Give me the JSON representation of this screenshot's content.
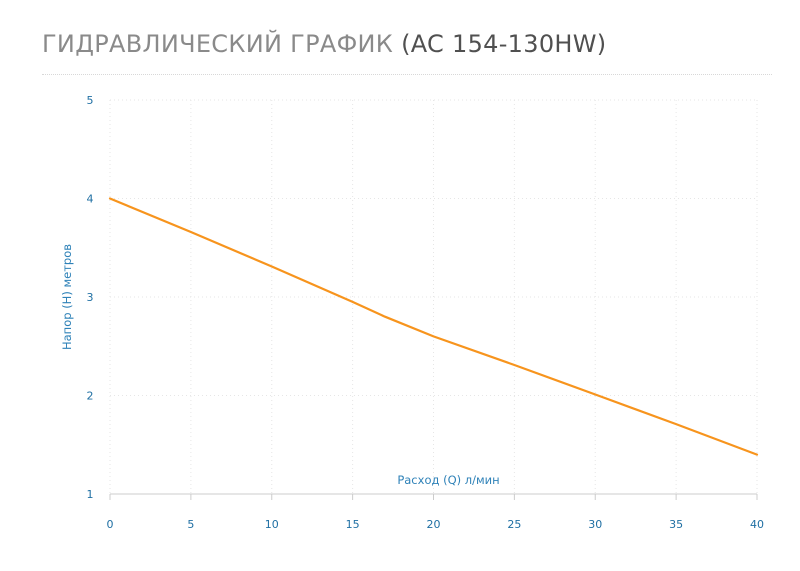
{
  "header": {
    "title_main": "ГИДРАВЛИЧЕСКИЙ ГРАФИК",
    "title_sub": "(AC 154-130HW)"
  },
  "colors": {
    "line": "#f7941d",
    "tick": "#1f6fa3",
    "axis_label": "#2f82b8",
    "grid": "#e6e6e6",
    "title_main": "#8a8a8a",
    "title_sub": "#505050"
  },
  "chart_data": {
    "type": "line",
    "title": "ГИДРАВЛИЧЕСКИЙ ГРАФИК (AC 154-130HW)",
    "xlabel": "Расход (Q) л/мин",
    "ylabel": "Напор (H) метров",
    "xlim": [
      0,
      40
    ],
    "ylim": [
      1,
      5
    ],
    "x_ticks": [
      0,
      5,
      10,
      15,
      20,
      25,
      30,
      35,
      40
    ],
    "y_ticks": [
      1,
      2,
      3,
      4,
      5
    ],
    "grid": true,
    "legend": "none",
    "series": [
      {
        "x": [
          0,
          5,
          10,
          15,
          17,
          20,
          25,
          30,
          35,
          40
        ],
        "y": [
          4.0,
          3.66,
          3.31,
          2.95,
          2.8,
          2.6,
          2.31,
          2.01,
          1.71,
          1.4
        ]
      }
    ]
  }
}
